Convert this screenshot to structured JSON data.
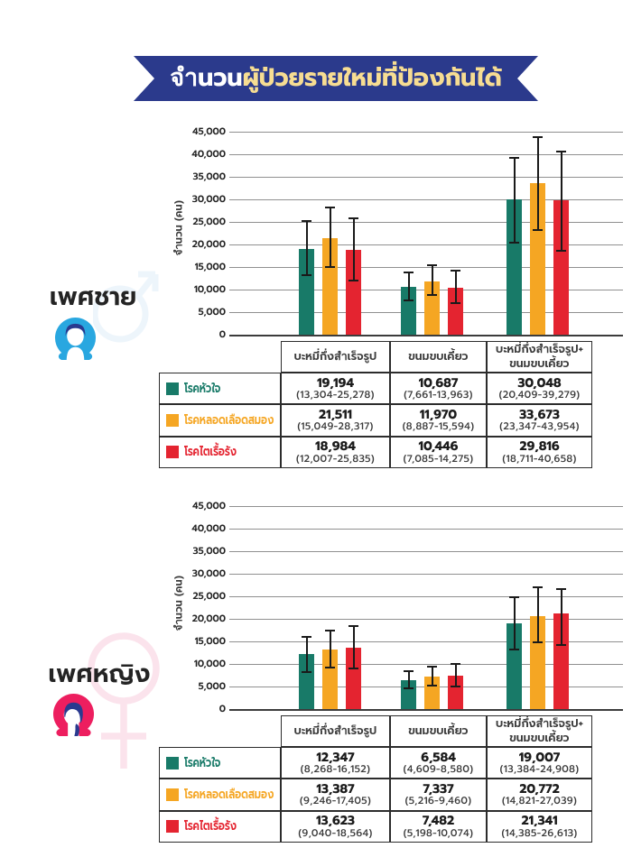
{
  "banner": {
    "title_part1": "จำนวน",
    "title_part2": "ผู้ป่วยรายใหม่ที่ป้องกันได้"
  },
  "colors": {
    "banner_bg": "#2b3a8c",
    "title_part1": "#ffffff",
    "title_part2": "#f7dd92",
    "heart": "#187a68",
    "stroke": "#f5a623",
    "kidney": "#e42430",
    "male_icon_blue": "#29a7e0",
    "female_icon_pink": "#ed1e5f",
    "icon_hair_navy": "#2a3a8f",
    "grid_line": "#909090",
    "axis_line": "#3c3c3c",
    "table_border": "#2c2c2c",
    "text_dark": "#242424"
  },
  "sections": [
    {
      "label": "เพศชาย",
      "icon": "male-person-icon",
      "watermark": "male-symbol"
    },
    {
      "label": "เพศหญิง",
      "icon": "female-person-icon",
      "watermark": "female-symbol"
    }
  ],
  "chart_data": [
    {
      "type": "bar",
      "section": "เพศชาย",
      "ylabel": "จำนวน (คน)",
      "ylim": [
        0,
        45000
      ],
      "ytick_step": 5000,
      "grid": "on",
      "legend_position": "table-left",
      "categories": [
        "บะหมี่กึ่งสำเร็จรูป",
        "ขนมขบเคี้ยว",
        "บะหมี่กึ่งสำเร็จรูป+ ขนมขบเคี้ยว"
      ],
      "category_lines": [
        [
          "บะหมี่กึ่งสำเร็จรูป"
        ],
        [
          "ขนมขบเคี้ยว"
        ],
        [
          "บะหมี่กึ่งสำเร็จรูป+",
          "ขนมขบเคี้ยว"
        ]
      ],
      "series": [
        {
          "name": "โรคหัวใจ",
          "color_key": "heart",
          "values": [
            19194,
            10687,
            30048
          ],
          "ranges": [
            [
              13304,
              25278
            ],
            [
              7661,
              13963
            ],
            [
              20409,
              39279
            ]
          ]
        },
        {
          "name": "โรคหลอดเลือดสมอง",
          "color_key": "stroke",
          "values": [
            21511,
            11970,
            33673
          ],
          "ranges": [
            [
              15049,
              28317
            ],
            [
              8887,
              15594
            ],
            [
              23347,
              43954
            ]
          ]
        },
        {
          "name": "โรคไตเรื้อรัง",
          "color_key": "kidney",
          "values": [
            18984,
            10446,
            29816
          ],
          "ranges": [
            [
              12007,
              25835
            ],
            [
              7085,
              14275
            ],
            [
              18711,
              40658
            ]
          ]
        }
      ]
    },
    {
      "type": "bar",
      "section": "เพศหญิง",
      "ylabel": "จำนวน (คน)",
      "ylim": [
        0,
        45000
      ],
      "ytick_step": 5000,
      "grid": "on",
      "legend_position": "table-left",
      "categories": [
        "บะหมี่กึ่งสำเร็จรูป",
        "ขนมขบเคี้ยว",
        "บะหมี่กึ่งสำเร็จรูป+ ขนมขบเคี้ยว"
      ],
      "category_lines": [
        [
          "บะหมี่กึ่งสำเร็จรูป"
        ],
        [
          "ขนมขบเคี้ยว"
        ],
        [
          "บะหมี่กึ่งสำเร็จรูป+",
          "ขนมขบเคี้ยว"
        ]
      ],
      "series": [
        {
          "name": "โรคหัวใจ",
          "color_key": "heart",
          "values": [
            12347,
            6584,
            19007
          ],
          "ranges": [
            [
              8268,
              16152
            ],
            [
              4609,
              8580
            ],
            [
              13384,
              24908
            ]
          ]
        },
        {
          "name": "โรคหลอดเลือดสมอง",
          "color_key": "stroke",
          "values": [
            13387,
            7337,
            20772
          ],
          "ranges": [
            [
              9246,
              17405
            ],
            [
              5216,
              9460
            ],
            [
              14821,
              27039
            ]
          ]
        },
        {
          "name": "โรคไตเรื้อรัง",
          "color_key": "kidney",
          "values": [
            13623,
            7482,
            21341
          ],
          "ranges": [
            [
              9040,
              18564
            ],
            [
              5198,
              10074
            ],
            [
              14385,
              26613
            ]
          ]
        }
      ]
    }
  ]
}
